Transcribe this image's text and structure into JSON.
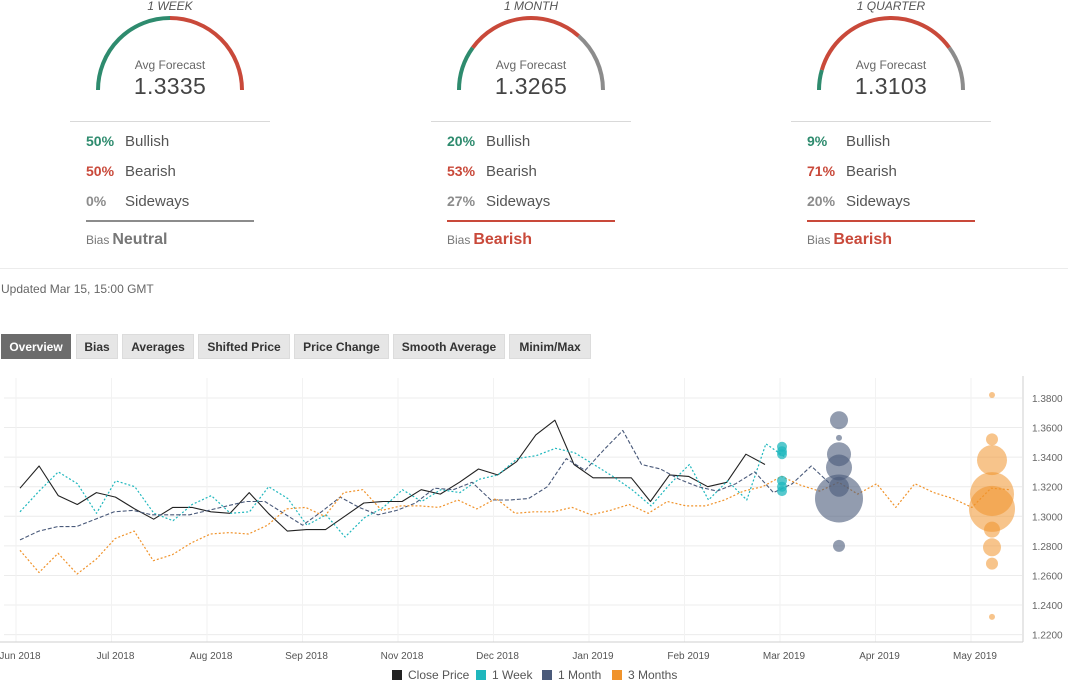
{
  "panels": [
    {
      "title": "1 WEEK",
      "gauge_label": "Avg Forecast",
      "value": "1.3335",
      "bullish_pct": "50%",
      "bullish_label": "Bullish",
      "bearish_pct": "50%",
      "bearish_label": "Bearish",
      "sideways_pct": "0%",
      "sideways_label": "Sideways",
      "bias_label": "Bias",
      "bias": "Neutral",
      "bias_color": "#777777",
      "shares": [
        0.5,
        0.5,
        0.0
      ]
    },
    {
      "title": "1 MONTH",
      "gauge_label": "Avg Forecast",
      "value": "1.3265",
      "bullish_pct": "20%",
      "bullish_label": "Bullish",
      "bearish_pct": "53%",
      "bearish_label": "Bearish",
      "sideways_pct": "27%",
      "sideways_label": "Sideways",
      "bias_label": "Bias",
      "bias": "Bearish",
      "bias_color": "#c9493a",
      "shares": [
        0.2,
        0.53,
        0.27
      ]
    },
    {
      "title": "1 QUARTER",
      "gauge_label": "Avg Forecast",
      "value": "1.3103",
      "bullish_pct": "9%",
      "bullish_label": "Bullish",
      "bearish_pct": "71%",
      "bearish_label": "Bearish",
      "sideways_pct": "20%",
      "sideways_label": "Sideways",
      "bias_label": "Bias",
      "bias": "Bearish",
      "bias_color": "#c9493a",
      "shares": [
        0.09,
        0.71,
        0.2
      ]
    }
  ],
  "colors": {
    "bullish": "#2e8b6e",
    "bearish": "#c9493a",
    "sideways": "#8c8c8c",
    "close": "#222222",
    "week": "#1fb7bd",
    "month": "#4a5a7a",
    "quarter": "#f0932b"
  },
  "updated": "Updated Mar 15, 15:00 GMT",
  "tabs": [
    "Overview",
    "Bias",
    "Averages",
    "Shifted Price",
    "Price Change",
    "Smooth Average",
    "Minim/Max"
  ],
  "active_tab": "Overview",
  "chart_data": {
    "type": "line",
    "x_tick_labels": [
      "Jun 2018",
      "Jul 2018",
      "Aug 2018",
      "Sep 2018",
      "Nov 2018",
      "Dec 2018",
      "Jan 2019",
      "Feb 2019",
      "Mar 2019",
      "Apr 2019",
      "May 2019"
    ],
    "y_tick_labels": [
      "1.2200",
      "1.2400",
      "1.2600",
      "1.2800",
      "1.3000",
      "1.3200",
      "1.3400",
      "1.3600",
      "1.3800"
    ],
    "ylim": [
      1.215,
      1.3935
    ],
    "grid": true,
    "legend_position": "bottom",
    "series": [
      {
        "name": "Close Price",
        "style": "solid",
        "values": [
          1.319,
          1.334,
          1.314,
          1.308,
          1.316,
          1.313,
          1.305,
          1.298,
          1.306,
          1.306,
          1.303,
          1.302,
          1.316,
          1.302,
          1.29,
          1.291,
          1.291,
          1.3,
          1.309,
          1.31,
          1.31,
          1.318,
          1.315,
          1.323,
          1.332,
          1.328,
          1.337,
          1.355,
          1.365,
          1.335,
          1.326,
          1.326,
          1.326,
          1.31,
          1.328,
          1.327,
          1.32,
          1.323,
          1.342,
          1.335
        ]
      },
      {
        "name": "1 Week",
        "style": "dotted",
        "values": [
          1.303,
          1.317,
          1.33,
          1.322,
          1.302,
          1.324,
          1.32,
          1.302,
          1.297,
          1.308,
          1.314,
          1.302,
          1.303,
          1.32,
          1.312,
          1.294,
          1.301,
          1.286,
          1.299,
          1.306,
          1.318,
          1.31,
          1.318,
          1.316,
          1.325,
          1.328,
          1.339,
          1.341,
          1.346,
          1.343,
          1.335,
          1.327,
          1.318,
          1.307,
          1.322,
          1.335,
          1.311,
          1.324,
          1.311,
          1.349,
          1.34
        ]
      },
      {
        "name": "1 Month",
        "style": "dashed",
        "values": [
          1.284,
          1.29,
          1.293,
          1.293,
          1.298,
          1.303,
          1.304,
          1.301,
          1.301,
          1.301,
          1.304,
          1.307,
          1.31,
          1.31,
          1.302,
          1.294,
          1.303,
          1.313,
          1.306,
          1.301,
          1.304,
          1.309,
          1.319,
          1.318,
          1.323,
          1.311,
          1.311,
          1.312,
          1.32,
          1.339,
          1.331,
          1.345,
          1.358,
          1.335,
          1.332,
          1.325,
          1.32,
          1.317,
          1.322,
          1.33,
          1.316,
          1.322,
          1.334,
          1.322
        ]
      },
      {
        "name": "3 Months",
        "style": "dotted",
        "values": [
          1.277,
          1.262,
          1.275,
          1.261,
          1.271,
          1.285,
          1.29,
          1.27,
          1.274,
          1.282,
          1.288,
          1.289,
          1.288,
          1.294,
          1.305,
          1.306,
          1.3,
          1.316,
          1.318,
          1.304,
          1.307,
          1.307,
          1.306,
          1.311,
          1.305,
          1.312,
          1.302,
          1.303,
          1.303,
          1.306,
          1.301,
          1.304,
          1.308,
          1.302,
          1.31,
          1.307,
          1.307,
          1.311,
          1.317,
          1.32,
          1.327,
          1.321,
          1.317,
          1.323,
          1.315,
          1.322,
          1.306,
          1.322,
          1.316,
          1.312,
          1.306,
          1.319,
          1.318
        ]
      }
    ],
    "forecast_bubbles": [
      {
        "series": "1 Week",
        "points": [
          [
            1.347,
            5
          ],
          [
            1.344,
            5
          ],
          [
            1.342,
            5
          ],
          [
            1.324,
            5
          ],
          [
            1.32,
            5
          ],
          [
            1.317,
            5
          ]
        ]
      },
      {
        "series": "1 Month",
        "points": [
          [
            1.365,
            9
          ],
          [
            1.353,
            3
          ],
          [
            1.342,
            12
          ],
          [
            1.333,
            13
          ],
          [
            1.32,
            10
          ],
          [
            1.312,
            24
          ],
          [
            1.28,
            6
          ]
        ]
      },
      {
        "series": "3 Months",
        "points": [
          [
            1.382,
            3
          ],
          [
            1.352,
            6
          ],
          [
            1.338,
            15
          ],
          [
            1.315,
            22
          ],
          [
            1.305,
            23
          ],
          [
            1.291,
            8
          ],
          [
            1.279,
            9
          ],
          [
            1.268,
            6
          ],
          [
            1.232,
            3
          ]
        ]
      }
    ]
  }
}
